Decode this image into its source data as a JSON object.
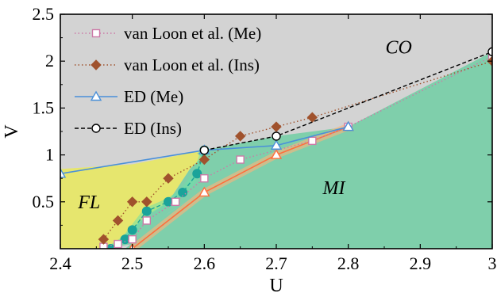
{
  "chart_data": {
    "type": "line",
    "xlabel": "U",
    "ylabel": "V",
    "xlim": [
      2.4,
      3.0
    ],
    "ylim": [
      0,
      2.5
    ],
    "xticks": [
      "2.4",
      "2.5",
      "2.6",
      "2.7",
      "2.8",
      "2.9",
      "3"
    ],
    "yticks": [
      "0.5",
      "1",
      "1.5",
      "2",
      "2.5"
    ],
    "x_tick_values": [
      2.4,
      2.5,
      2.6,
      2.7,
      2.8,
      2.9,
      3.0
    ],
    "y_tick_values": [
      0.5,
      1.0,
      1.5,
      2.0,
      2.5
    ],
    "region_labels": [
      {
        "text": "CO",
        "x": 2.87,
        "y": 2.15
      },
      {
        "text": "FL",
        "x": 2.44,
        "y": 0.5
      },
      {
        "text": "MI",
        "x": 2.78,
        "y": 0.65
      }
    ],
    "region_colors": {
      "CO": "#d3d3d3",
      "FL": "#e6e66e",
      "MI": "#7fcfab"
    },
    "regions": {
      "FL": [
        [
          2.4,
          0
        ],
        [
          2.4,
          0.85
        ],
        [
          2.5,
          0.9
        ],
        [
          2.6,
          1.05
        ],
        [
          2.61,
          1.05
        ],
        [
          2.58,
          0.85
        ],
        [
          2.55,
          0.5
        ],
        [
          2.52,
          0.35
        ],
        [
          2.49,
          0.15
        ],
        [
          2.47,
          0
        ]
      ],
      "MI": [
        [
          2.46,
          0
        ],
        [
          2.5,
          0.05
        ],
        [
          2.55,
          0.38
        ],
        [
          2.6,
          0.62
        ],
        [
          2.7,
          1.0
        ],
        [
          2.75,
          1.15
        ],
        [
          2.8,
          1.3
        ],
        [
          2.6,
          1.0
        ],
        [
          2.58,
          0.85
        ],
        [
          2.55,
          0.5
        ],
        [
          2.52,
          0.35
        ],
        [
          2.49,
          0.15
        ],
        [
          2.47,
          0
        ]
      ],
      "MI_main": [
        [
          2.49,
          0
        ],
        [
          2.55,
          0.38
        ],
        [
          2.6,
          0.62
        ],
        [
          2.7,
          1.0
        ],
        [
          2.75,
          1.15
        ],
        [
          2.8,
          1.3
        ],
        [
          3.0,
          2.1
        ],
        [
          3.0,
          0
        ]
      ],
      "MI_wedge": [
        [
          2.59,
          1.02
        ],
        [
          2.6,
          1.05
        ],
        [
          2.7,
          1.2
        ],
        [
          2.8,
          1.3
        ],
        [
          2.7,
          1.08
        ],
        [
          2.6,
          0.95
        ]
      ]
    },
    "series": [
      {
        "name": "van Loon et al. (Me)",
        "color": "#cc79a7",
        "marker": "square",
        "dash": "dotted",
        "x": [
          2.46,
          2.48,
          2.5,
          2.52,
          2.56,
          2.6,
          2.65,
          2.75,
          2.8,
          3.0
        ],
        "y": [
          0.02,
          0.05,
          0.1,
          0.3,
          0.5,
          0.75,
          0.95,
          1.15,
          1.3,
          2.05
        ]
      },
      {
        "name": "van Loon et al. (Ins)",
        "color": "#a0522d",
        "marker": "diamond",
        "dash": "dotted",
        "x": [
          2.46,
          2.48,
          2.5,
          2.52,
          2.55,
          2.6,
          2.65,
          2.7,
          2.75,
          3.0
        ],
        "y": [
          0.1,
          0.3,
          0.5,
          0.5,
          0.75,
          0.95,
          1.2,
          1.3,
          1.4,
          2.0
        ]
      },
      {
        "name": "ED (Me)",
        "color": "#4a90d9",
        "marker": "triangle",
        "dash": "solid",
        "x": [
          2.4,
          2.6,
          2.7,
          2.8
        ],
        "y": [
          0.8,
          1.05,
          1.1,
          1.3
        ]
      },
      {
        "name": "ED (Ins)",
        "color": "#000000",
        "marker": "circle",
        "dash": "dashed",
        "x": [
          2.6,
          2.7,
          3.0
        ],
        "y": [
          1.05,
          1.2,
          2.1
        ]
      }
    ],
    "extra_series": [
      {
        "label": "",
        "color": "#1aa39a",
        "marker": "filled-circle",
        "dash": "dashed",
        "x": [
          2.47,
          2.49,
          2.5,
          2.52,
          2.55,
          2.57,
          2.59,
          2.6
        ],
        "y": [
          0.0,
          0.1,
          0.2,
          0.4,
          0.5,
          0.6,
          0.8,
          1.05
        ]
      },
      {
        "label": "",
        "color": "#ff6f3d",
        "marker": "triangle",
        "dash": "solid",
        "x": [
          2.5,
          2.6,
          2.7,
          2.8
        ],
        "y": [
          0.0,
          0.6,
          1.0,
          1.3
        ]
      }
    ],
    "legend_position": "top-left"
  }
}
